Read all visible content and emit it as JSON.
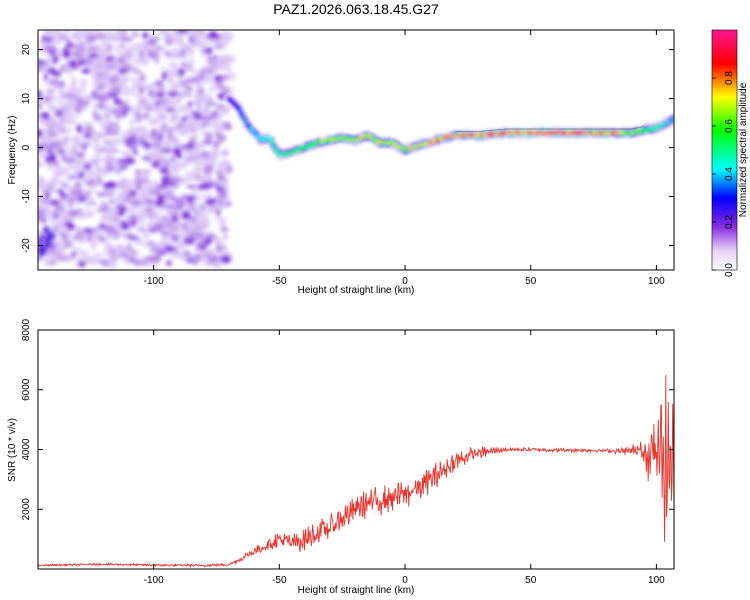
{
  "title": "PAZ1.2026.063.18.45.G27",
  "chart_data": [
    {
      "type": "heatmap",
      "name": "spectrogram",
      "xlabel": "Height of straight line (km)",
      "ylabel": "Frequency (Hz)",
      "xlim": [
        -146,
        107
      ],
      "ylim": [
        -25,
        24
      ],
      "xticks": [
        -100,
        -50,
        0,
        50,
        100
      ],
      "yticks": [
        -20,
        -10,
        0,
        10,
        20
      ],
      "colorbar": {
        "label": "Normalized spectral amplitude",
        "range": [
          0.0,
          1.0
        ],
        "ticks": [
          "0.0",
          "0.2",
          "0.4",
          "0.6",
          "0.8"
        ],
        "colors": [
          "#ffffff",
          "#e6d2f7",
          "#8a2be2",
          "#0000ff",
          "#00ffff",
          "#00ff00",
          "#ffff00",
          "#ff0000",
          "#ff1493"
        ]
      },
      "noise_region": {
        "x": [
          -146,
          -70
        ],
        "y": [
          -24,
          24
        ]
      },
      "ridge": {
        "x": [
          -70,
          -66,
          -63,
          -60,
          -57,
          -54,
          -50,
          -45,
          -40,
          -35,
          -30,
          -25,
          -20,
          -15,
          -10,
          -5,
          0,
          5,
          10,
          15,
          20,
          30,
          40,
          50,
          60,
          70,
          80,
          90,
          95,
          100,
          104,
          107
        ],
        "y": [
          10,
          8,
          5,
          3,
          1.5,
          2,
          -1.5,
          -1,
          0,
          1,
          1.5,
          2,
          1.5,
          2.5,
          1,
          1,
          -0.5,
          0.5,
          1,
          2,
          2.5,
          2.5,
          3,
          3,
          3,
          3,
          3,
          3,
          3.5,
          4,
          5,
          6
        ],
        "amplitude": [
          0.35,
          0.4,
          0.45,
          0.5,
          0.5,
          0.5,
          0.55,
          0.55,
          0.6,
          0.65,
          0.7,
          0.7,
          0.7,
          0.72,
          0.72,
          0.7,
          0.72,
          0.75,
          0.78,
          0.8,
          0.82,
          0.85,
          0.85,
          0.88,
          0.88,
          0.86,
          0.82,
          0.7,
          0.6,
          0.55,
          0.5,
          0.45
        ]
      }
    },
    {
      "type": "line",
      "name": "snr",
      "xlabel": "Height of straight line (km)",
      "ylabel": "SNR (10 * v/v)",
      "xlim": [
        -146,
        107
      ],
      "ylim": [
        0,
        8000
      ],
      "xticks": [
        -100,
        -50,
        0,
        50,
        100
      ],
      "yticks": [
        2000,
        4000,
        6000,
        8000
      ],
      "color": "#e8332c",
      "envelope": {
        "x": [
          -146,
          -120,
          -100,
          -80,
          -70,
          -65,
          -60,
          -55,
          -50,
          -45,
          -40,
          -35,
          -30,
          -25,
          -20,
          -15,
          -10,
          -5,
          0,
          5,
          10,
          15,
          20,
          25,
          30,
          35,
          40,
          50,
          60,
          70,
          80,
          90,
          95,
          100,
          104,
          107
        ],
        "y": [
          120,
          160,
          130,
          120,
          150,
          350,
          600,
          800,
          1000,
          850,
          1000,
          1200,
          1400,
          1700,
          2000,
          2200,
          2300,
          2400,
          2500,
          2700,
          3000,
          3300,
          3600,
          3800,
          3900,
          3950,
          4000,
          4000,
          3980,
          3980,
          3960,
          3950,
          3950,
          3900,
          3600,
          3600
        ]
      },
      "oscillation": {
        "x": [
          -146,
          -70,
          -60,
          -50,
          -40,
          -20,
          0,
          20,
          40,
          80,
          90,
          95,
          100,
          104,
          107
        ],
        "amplitude": [
          40,
          60,
          200,
          400,
          500,
          600,
          700,
          450,
          100,
          80,
          200,
          600,
          1800,
          3000,
          1800
        ]
      }
    }
  ]
}
